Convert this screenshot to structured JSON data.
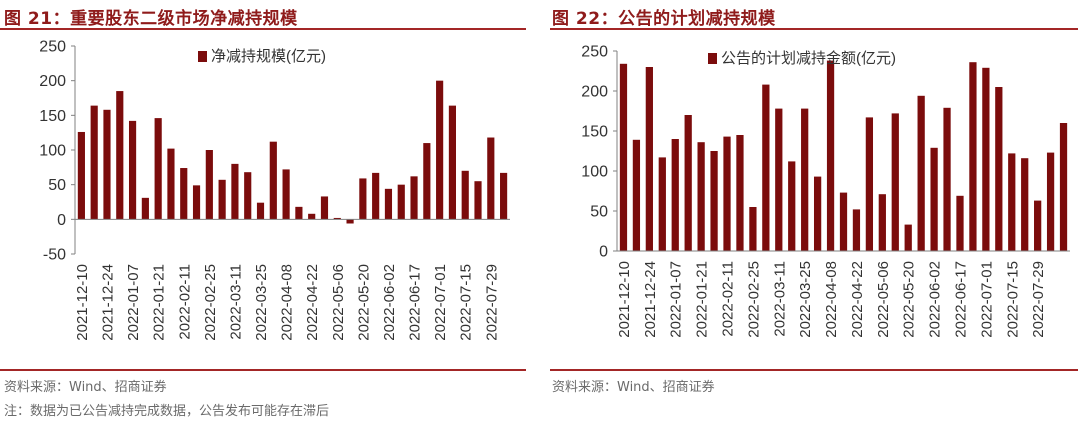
{
  "page": {
    "accent_color": "#a32626",
    "bar_color": "#7b0c0c"
  },
  "left": {
    "title": "图 21：重要股东二级市场净减持规模",
    "source": "资料来源：Wind、招商证券",
    "note": "注：数据为已公告减持完成数据，公告发布可能存在滞后"
  },
  "right": {
    "title": "图 22：公告的计划减持规模",
    "source": "资料来源：Wind、招商证券"
  },
  "chart_data": [
    {
      "type": "bar",
      "title": "",
      "legend": "净减持规模(亿元)",
      "legend_placement": "top-center",
      "ylim": [
        -50,
        250
      ],
      "yticks": [
        -50,
        0,
        50,
        100,
        150,
        200,
        250
      ],
      "grid": false,
      "tick_labels": [
        "2021-12-10",
        "2021-12-24",
        "2022-01-07",
        "2022-01-21",
        "2022-02-11",
        "2022-02-25",
        "2022-03-11",
        "2022-03-25",
        "2022-04-08",
        "2022-04-22",
        "2022-05-06",
        "2022-05-20",
        "2022-06-02",
        "2022-06-17",
        "2022-07-01",
        "2022-07-15",
        "2022-07-29"
      ],
      "series": [
        {
          "name": "净减持规模(亿元)",
          "values": [
            126,
            164,
            158,
            185,
            142,
            31,
            146,
            102,
            74,
            49,
            100,
            57,
            80,
            68,
            24,
            112,
            72,
            18,
            8,
            33,
            2,
            -6,
            59,
            67,
            44,
            50,
            62,
            110,
            200,
            164,
            70,
            55,
            118,
            67
          ]
        }
      ]
    },
    {
      "type": "bar",
      "title": "",
      "legend": "公告的计划减持金额(亿元)",
      "legend_placement": "top-center",
      "ylim": [
        0,
        250
      ],
      "yticks": [
        0,
        50,
        100,
        150,
        200,
        250
      ],
      "grid": false,
      "tick_labels": [
        "2021-12-10",
        "2021-12-24",
        "2022-01-07",
        "2022-01-21",
        "2022-02-11",
        "2022-02-25",
        "2022-03-11",
        "2022-03-25",
        "2022-04-08",
        "2022-04-22",
        "2022-05-06",
        "2022-05-20",
        "2022-06-02",
        "2022-06-17",
        "2022-07-01",
        "2022-07-15",
        "2022-07-29"
      ],
      "series": [
        {
          "name": "公告的计划减持金额(亿元)",
          "values": [
            234,
            139,
            230,
            117,
            140,
            170,
            136,
            125,
            143,
            145,
            55,
            208,
            178,
            112,
            178,
            93,
            238,
            73,
            52,
            167,
            71,
            172,
            33,
            194,
            129,
            179,
            69,
            236,
            229,
            205,
            122,
            116,
            63,
            123,
            160
          ]
        }
      ]
    }
  ]
}
